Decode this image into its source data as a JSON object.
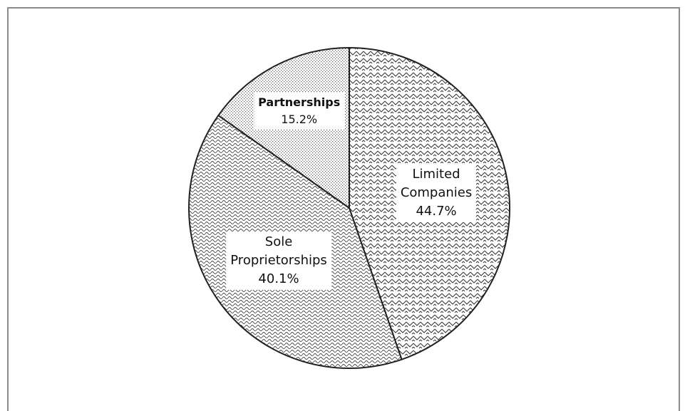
{
  "chart_data": {
    "type": "pie",
    "categories": [
      "Limited Companies",
      "Sole Proprietorships",
      "Partnerships"
    ],
    "values": [
      44.7,
      40.1,
      15.2
    ],
    "value_labels": [
      "44.7%",
      "40.1%",
      "15.2%"
    ]
  }
}
